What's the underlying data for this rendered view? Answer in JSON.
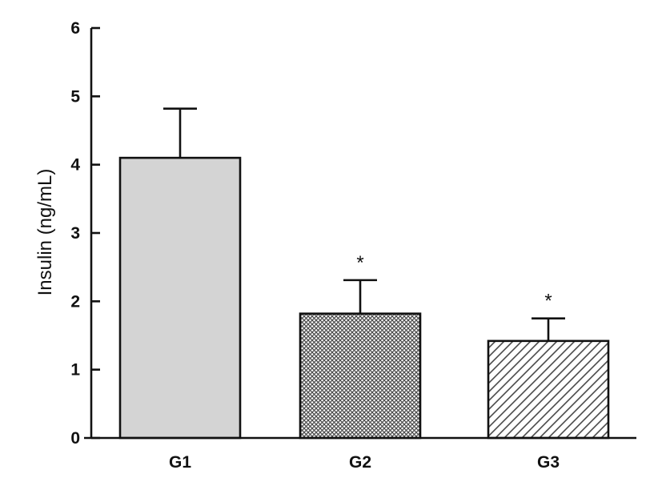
{
  "chart_data": {
    "type": "bar",
    "title": "",
    "xlabel": "",
    "ylabel": "Insulin (ng/mL)",
    "ylim": [
      0,
      6
    ],
    "yticks": [
      "0",
      "1",
      "2",
      "3",
      "4",
      "5",
      "6"
    ],
    "categories": [
      "G1",
      "G2",
      "G3"
    ],
    "values": [
      4.1,
      1.82,
      1.42
    ],
    "errors": [
      0.72,
      0.49,
      0.33
    ],
    "significance": [
      "",
      "*",
      "*"
    ],
    "fills": [
      "solid-light-gray",
      "crosshatch-dots",
      "diagonal-hatch"
    ],
    "colors": {
      "solid": "#d4d4d4",
      "outline": "#111111",
      "pattern": "#4a4a4a"
    },
    "grid": false,
    "legend": "none"
  }
}
